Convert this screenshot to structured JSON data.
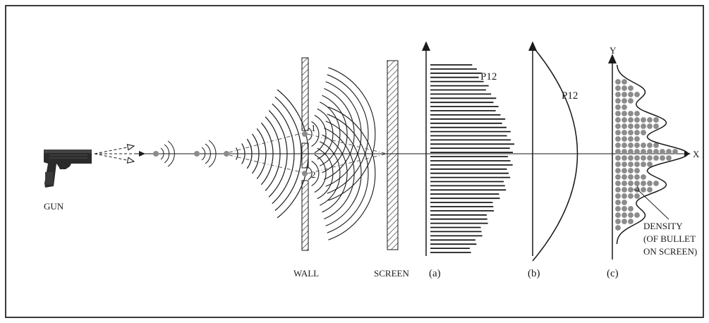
{
  "labels": {
    "gun": "GUN",
    "wall": "WALL",
    "screen": "SCREEN",
    "panel_a": "(a)",
    "panel_b": "(b)",
    "panel_c": "(c)",
    "p12_a": "P12",
    "p12_b": "P12",
    "axis_y": "Y",
    "axis_x": "X",
    "density_line1": "DENSITY",
    "density_line2": "(OF BULLET",
    "density_line3": "ON SCREEN)",
    "slit_1": "1",
    "slit_2": "2"
  },
  "colors": {
    "ink": "#1a1a1a",
    "dot": "#8c8c8c",
    "frame": "#3a3a3a"
  },
  "icons": {
    "gun": "pistol-icon"
  }
}
